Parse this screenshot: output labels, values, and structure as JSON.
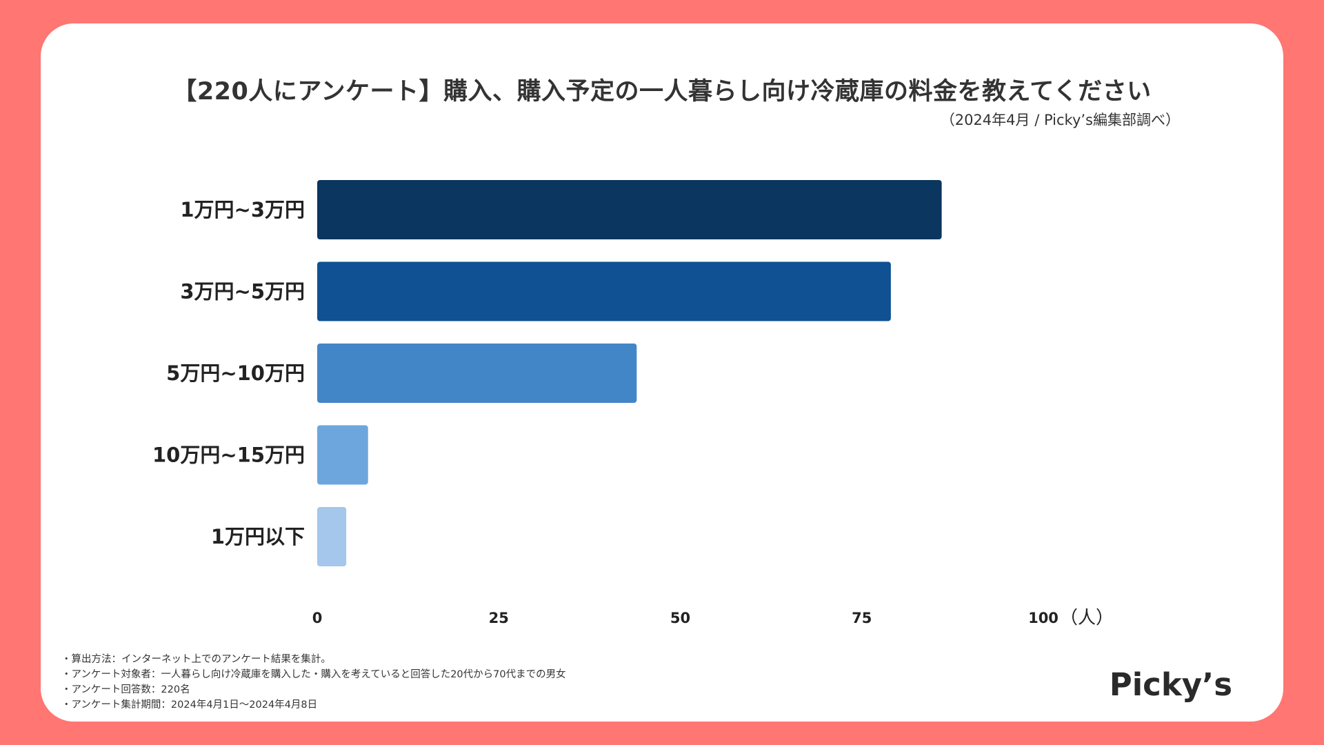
{
  "chart_data": {
    "type": "bar",
    "orientation": "horizontal",
    "title": "【220人にアンケート】購入、購入予定の一人暮らし向け冷蔵庫の料金を教えてください",
    "subtitle": "（2024年4月 / Picky’s編集部調べ）",
    "categories": [
      "1万円~3万円",
      "3万円~5万円",
      "5万円~10万円",
      "10万円~15万円",
      "1万円以下"
    ],
    "values": [
      86,
      79,
      44,
      7,
      4
    ],
    "colors": [
      "#0A365F",
      "#0F5192",
      "#4386C7",
      "#6DA6DD",
      "#A4C7EB"
    ],
    "xlim": [
      0,
      100
    ],
    "xticks": [
      0,
      25,
      50,
      75,
      100
    ],
    "xticklabels": [
      "0",
      "25",
      "50",
      "75",
      "100"
    ],
    "xunit": "（人）",
    "grid": false,
    "legend": "none"
  },
  "notes": [
    "・算出方法：インターネット上でのアンケート結果を集計。",
    "・アンケート対象者：一人暮らし向け冷蔵庫を購入した・購入を考えていると回答した20代から70代までの男女",
    "・アンケート回答数：220名",
    "・アンケート集計期間：2024年4月1日〜2024年4月8日"
  ],
  "logo": "Picky’s",
  "colors": {
    "background": "#FF7672",
    "card": "#FFFFFF",
    "text": "#333333"
  }
}
